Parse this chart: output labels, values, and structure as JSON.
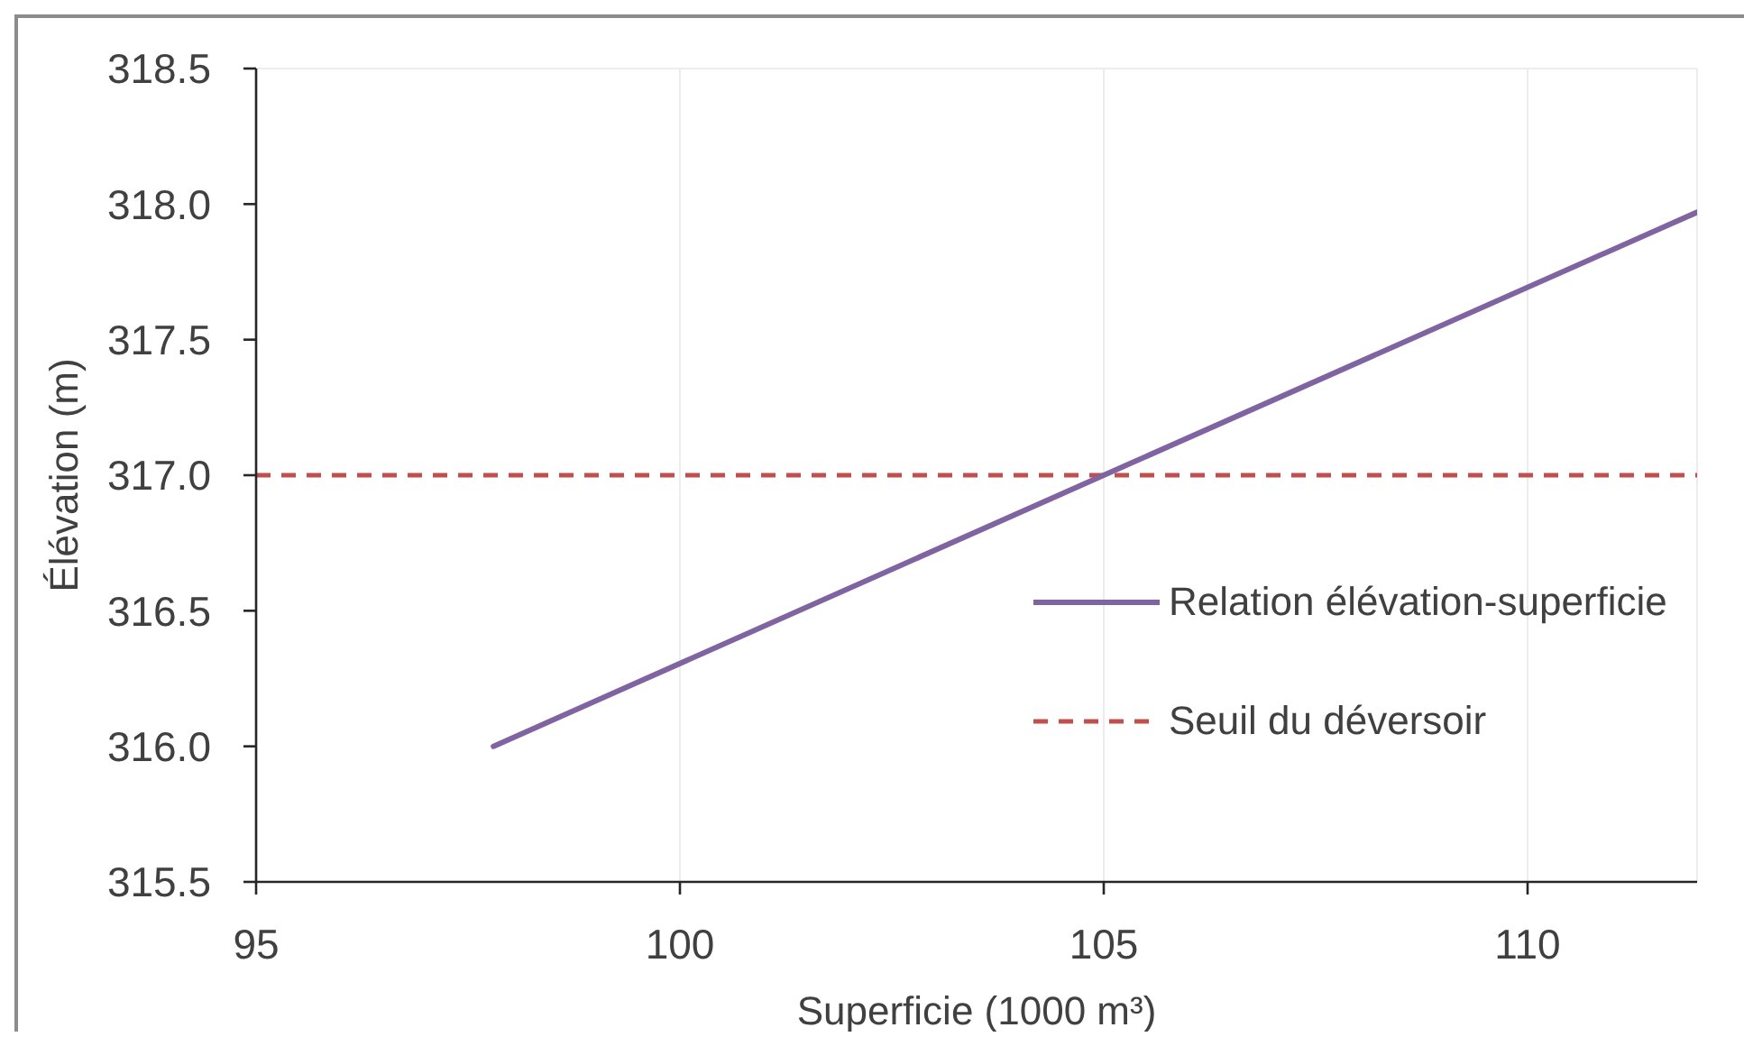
{
  "chart_data": {
    "type": "line",
    "xlabel": "Superficie (1000 m³)",
    "ylabel": "Élévation (m)",
    "series": [
      {
        "name": "Relation élévation-superficie",
        "color": "#8064a2",
        "x": [
          97.8,
          105,
          112
        ],
        "values": [
          316.0,
          317.0,
          317.97
        ]
      }
    ],
    "ref_lines": [
      {
        "axis": "y",
        "value": 317.0,
        "label": "Seuil du déversoir",
        "color": "#c0504d",
        "line_style": "dashed"
      }
    ],
    "xlim": [
      95,
      112
    ],
    "xticks": [
      95,
      100,
      105,
      110
    ],
    "ylim": [
      315.5,
      318.5
    ],
    "yticks": [
      315.5,
      {
        "value": 316,
        "label": "316.0"
      },
      316.5,
      {
        "value": 317,
        "label": "317.0"
      },
      317.5,
      {
        "value": 318,
        "label": "318.0"
      },
      318.5
    ],
    "grid": true,
    "legend": "right"
  }
}
